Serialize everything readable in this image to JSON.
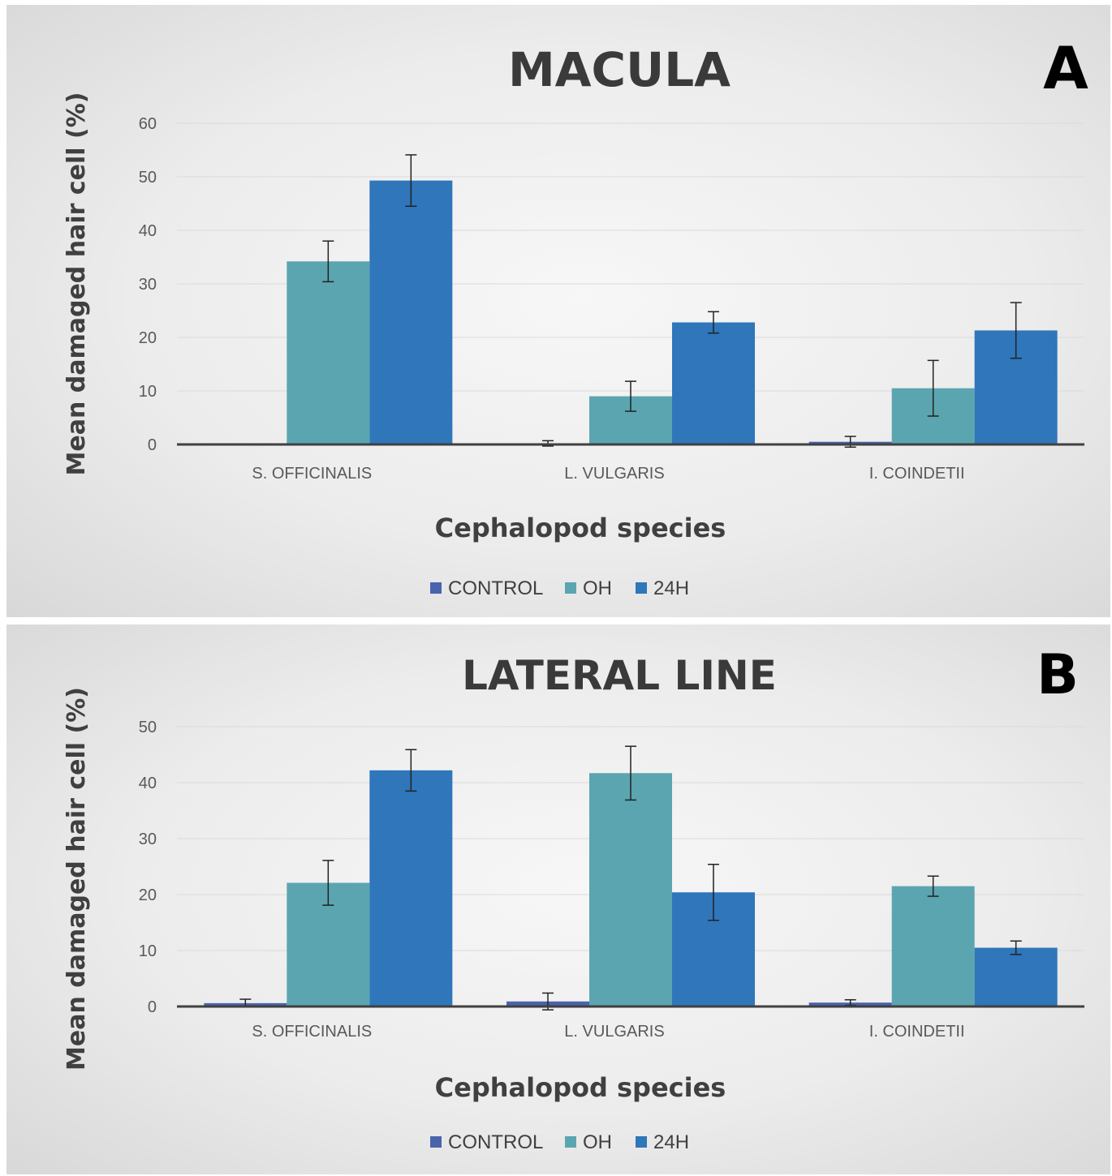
{
  "colors": {
    "CONTROL": "#4a63ad",
    "OH": "#5ba5b0",
    "24H": "#2f76bb"
  },
  "chart_data": [
    {
      "panel": "A",
      "type": "bar",
      "title": "MACULA",
      "xlabel": "Cephalopod species",
      "ylabel": "Mean damaged hair cell (%)",
      "ylim": [
        0,
        60
      ],
      "yticks": [
        0,
        10,
        20,
        30,
        40,
        50,
        60
      ],
      "grid": true,
      "legend_position": "bottom",
      "categories": [
        "S. OFFICINALIS",
        "L. VULGARIS",
        "I. COINDETII"
      ],
      "series": [
        {
          "name": "CONTROL",
          "values": [
            0,
            0.2,
            0.5
          ],
          "errors": [
            0,
            0.5,
            1.0
          ]
        },
        {
          "name": "OH",
          "values": [
            34.2,
            9.0,
            10.5
          ],
          "errors": [
            3.8,
            2.8,
            5.2
          ]
        },
        {
          "name": "24H",
          "values": [
            49.3,
            22.8,
            21.3
          ],
          "errors": [
            4.8,
            2.0,
            5.2
          ]
        }
      ]
    },
    {
      "panel": "B",
      "type": "bar",
      "title": "LATERAL LINE",
      "xlabel": "Cephalopod species",
      "ylabel": "Mean damaged hair cell (%)",
      "ylim": [
        0,
        50
      ],
      "yticks": [
        0,
        10,
        20,
        30,
        40,
        50
      ],
      "grid": true,
      "legend_position": "bottom",
      "categories": [
        "S. OFFICINALIS",
        "L. VULGARIS",
        "I. COINDETII"
      ],
      "series": [
        {
          "name": "CONTROL",
          "values": [
            0.6,
            0.9,
            0.7
          ],
          "errors": [
            0.7,
            1.5,
            0.5
          ]
        },
        {
          "name": "OH",
          "values": [
            22.1,
            41.7,
            21.5
          ],
          "errors": [
            4.0,
            4.8,
            1.8
          ]
        },
        {
          "name": "24H",
          "values": [
            42.2,
            20.4,
            10.5
          ],
          "errors": [
            3.7,
            5.0,
            1.2
          ]
        }
      ]
    }
  ]
}
